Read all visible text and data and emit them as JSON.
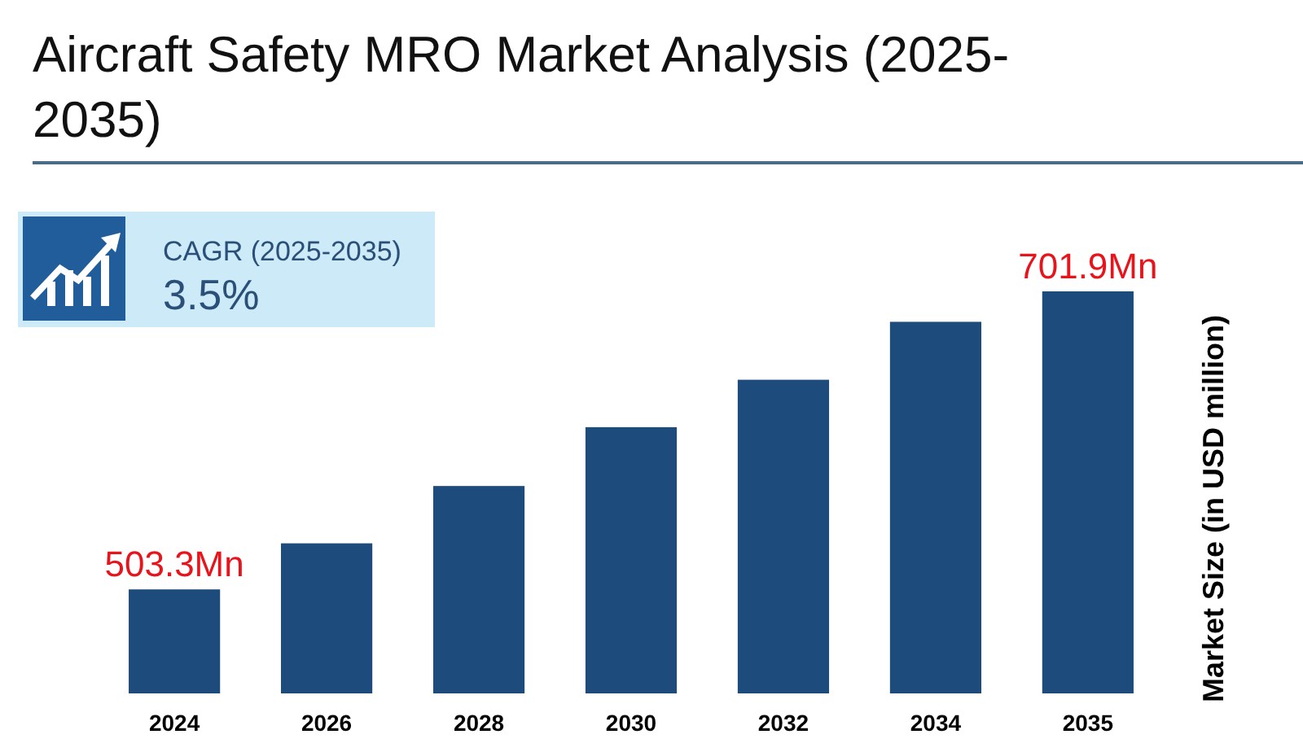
{
  "chart_data": {
    "type": "bar",
    "title": "Aircraft Safety MRO Market Analysis (2025-2035)",
    "ylabel": "Market Size (in USD million)",
    "ylim": [
      434,
      701.9
    ],
    "categories": [
      "2024",
      "2026",
      "2028",
      "2030",
      "2032",
      "2034",
      "2035"
    ],
    "series": [
      {
        "color": "#1c4b7c",
        "values": [
          503.3,
          534.0,
          572.2,
          611.4,
          643.0,
          681.6,
          701.9
        ],
        "value_labels": [
          "503.3Mn",
          null,
          null,
          null,
          null,
          null,
          "701.9Mn"
        ]
      }
    ],
    "annotations": [
      "CAGR (2025-2035)",
      "3.5%"
    ]
  }
}
